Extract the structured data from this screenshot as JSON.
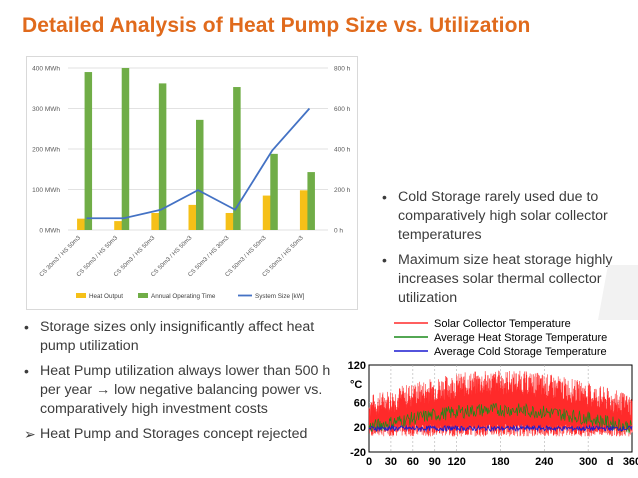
{
  "slide": {
    "title": "Detailed Analysis of Heat Pump Size vs. Utilization",
    "right_bullets": [
      "Cold Storage rarely used due to comparatively high solar collector temperatures",
      "Maximum size heat storage highly increases solar thermal collector utilization"
    ],
    "left_bullets": [
      {
        "marker": "•",
        "text": "Storage sizes only insignificantly affect heat pump utilization"
      },
      {
        "marker": "•",
        "text": "Heat Pump utilization always lower than 500 h per year → low negative balancing power vs. comparatively high investment costs"
      },
      {
        "marker": "➢",
        "text": "Heat Pump and Storages concept rejected"
      }
    ]
  },
  "chart_data": [
    {
      "type": "bar",
      "categories": [
        "CS 30m3 / HS 50m3",
        "CS 50m3 / HS 50m3",
        "CS 50m3 / HS 50m3",
        "CS 50m3 / HS 50m3",
        "CS 50m3 / HS 30m3",
        "CS 50m3 / HS 50m3",
        "CS 50m3 / HS 50m3"
      ],
      "y_left": {
        "ticks": [
          "0 MWh",
          "100 MWh",
          "200 MWh",
          "300 MWh",
          "400 MWh"
        ],
        "ylim": [
          0,
          400
        ]
      },
      "y_right": {
        "ticks": [
          "0 h",
          "200 h",
          "400 h",
          "600 h",
          "800 h"
        ],
        "ylim": [
          0,
          800
        ]
      },
      "series": [
        {
          "name": "Heat Output",
          "kind": "bar",
          "axis": "left",
          "color": "#f5c018",
          "values": [
            28,
            22,
            42,
            62,
            42,
            85,
            98
          ]
        },
        {
          "name": "Annual Operating Time",
          "kind": "bar",
          "axis": "left",
          "color": "#70ad47",
          "values": [
            390,
            400,
            362,
            272,
            353,
            188,
            143
          ]
        },
        {
          "name": "System Size [kW]",
          "kind": "line",
          "axis": "right",
          "color": "#4472c4",
          "values": [
            58,
            58,
            100,
            197,
            100,
            393,
            600
          ]
        }
      ],
      "grid": true,
      "legend": "bottom"
    },
    {
      "type": "line",
      "legend": [
        {
          "name": "Solar Collector Temperature",
          "color": "#ff2a2a"
        },
        {
          "name": "Average Heat Storage Temperature",
          "color": "#1a8a1a"
        },
        {
          "name": "Average Cold Storage Temperature",
          "color": "#1a1ad0"
        }
      ],
      "ylabel": "°C",
      "y_ticks": [
        "120",
        "60",
        "20",
        "-20"
      ],
      "ylim": [
        -20,
        120
      ],
      "x_ticks": [
        "0",
        "30",
        "60",
        "90",
        "120",
        "180",
        "240",
        "300",
        "d",
        "360"
      ],
      "xlim": [
        0,
        360
      ],
      "grid": true
    }
  ]
}
